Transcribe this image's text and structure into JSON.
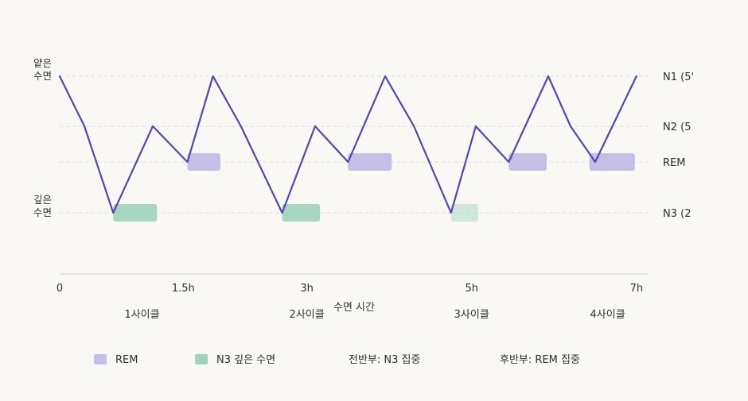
{
  "chart_data": {
    "type": "line",
    "title": "",
    "xlabel": "수면 시간",
    "ylabel": "",
    "x_ticks": [
      {
        "value": 0,
        "label": "0"
      },
      {
        "value": 1.5,
        "label": "1.5h"
      },
      {
        "value": 3,
        "label": "3h"
      },
      {
        "value": 5,
        "label": "5h"
      },
      {
        "value": 7,
        "label": "7h"
      }
    ],
    "xlim": [
      0,
      7.05
    ],
    "y_levels": [
      {
        "key": "N1",
        "label": "N1 (5'",
        "left_label": [
          "얕은",
          "수면"
        ]
      },
      {
        "key": "N2",
        "label": "N2 (5",
        "left_label": []
      },
      {
        "key": "REM",
        "label": "REM",
        "left_label": []
      },
      {
        "key": "N3",
        "label": "N3 (2",
        "left_label": [
          "깊은",
          "수면"
        ]
      }
    ],
    "series": [
      {
        "color": "#5546b0",
        "points": [
          {
            "x": 0.0,
            "stage": "N1"
          },
          {
            "x": 0.3,
            "stage": "N2"
          },
          {
            "x": 0.65,
            "stage": "N3"
          },
          {
            "x": 1.13,
            "stage": "N2"
          },
          {
            "x": 1.55,
            "stage": "REM"
          },
          {
            "x": 1.86,
            "stage": "N1"
          },
          {
            "x": 2.2,
            "stage": "N2"
          },
          {
            "x": 2.7,
            "stage": "N3"
          },
          {
            "x": 3.1,
            "stage": "N2"
          },
          {
            "x": 3.5,
            "stage": "REM"
          },
          {
            "x": 3.95,
            "stage": "N1"
          },
          {
            "x": 4.3,
            "stage": "N2"
          },
          {
            "x": 4.75,
            "stage": "N3"
          },
          {
            "x": 5.05,
            "stage": "N2"
          },
          {
            "x": 5.45,
            "stage": "REM"
          },
          {
            "x": 5.93,
            "stage": "N1"
          },
          {
            "x": 6.2,
            "stage": "N2"
          },
          {
            "x": 6.5,
            "stage": "REM"
          },
          {
            "x": 7.0,
            "stage": "N1"
          }
        ]
      }
    ],
    "highlights": [
      {
        "kind": "N3",
        "stage": "N3",
        "x_start": 0.65,
        "x_end": 1.18,
        "opacity": 0.9
      },
      {
        "kind": "REM",
        "stage": "REM",
        "x_start": 1.55,
        "x_end": 1.95,
        "opacity": 1.0
      },
      {
        "kind": "N3",
        "stage": "N3",
        "x_start": 2.7,
        "x_end": 3.16,
        "opacity": 0.9
      },
      {
        "kind": "REM",
        "stage": "REM",
        "x_start": 3.5,
        "x_end": 4.03,
        "opacity": 1.0
      },
      {
        "kind": "N3",
        "stage": "N3",
        "x_start": 4.75,
        "x_end": 5.08,
        "opacity": 0.45
      },
      {
        "kind": "REM",
        "stage": "REM",
        "x_start": 5.45,
        "x_end": 5.91,
        "opacity": 1.0
      },
      {
        "kind": "REM",
        "stage": "REM",
        "x_start": 6.43,
        "x_end": 6.98,
        "opacity": 1.0
      }
    ],
    "cycle_labels": [
      {
        "x": 1.0,
        "text": "1사이클"
      },
      {
        "x": 3.0,
        "text": "2사이클"
      },
      {
        "x": 5.0,
        "text": "3사이클"
      },
      {
        "x": 6.65,
        "text": "4사이클"
      }
    ],
    "legend": [
      {
        "text": "REM",
        "swatch": "REM"
      },
      {
        "text": "N3 깊은 수면",
        "swatch": "N3"
      },
      {
        "text": "전반부: N3 집중"
      },
      {
        "text": "후반부: REM 집중"
      }
    ],
    "colors": {
      "line": "#5546b0",
      "rem": "#c3bfe6",
      "n3": "#9fd3bb",
      "grid": "#dcdcdc",
      "axis": "#cfcfcf",
      "text": "#2f2f2f",
      "background": "#f9f8f5"
    }
  }
}
